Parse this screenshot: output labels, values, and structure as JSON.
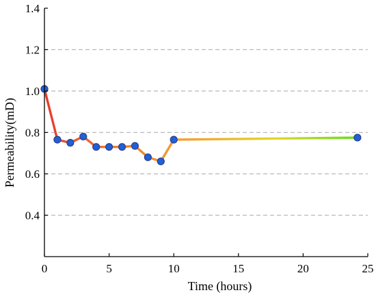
{
  "chart_data": {
    "type": "line",
    "xlabel": "Time (hours)",
    "ylabel": "Permeability(mD)",
    "xlim": [
      0,
      25
    ],
    "ylim": [
      0.2,
      1.4
    ],
    "xticks": [
      0,
      5,
      10,
      15,
      20,
      25
    ],
    "yticks": [
      0.4,
      0.6,
      0.8,
      1.0,
      1.2,
      1.4
    ],
    "ytick_labels": [
      "0.4",
      "0.6",
      "0.8",
      "1.0",
      "1.2",
      "1.4"
    ],
    "grid": "horizontal dashed",
    "series": [
      {
        "x": [
          0,
          1,
          2,
          3,
          4,
          5,
          6,
          7,
          8,
          9,
          10,
          24.2
        ],
        "y": [
          1.01,
          0.765,
          0.75,
          0.78,
          0.73,
          0.73,
          0.73,
          0.735,
          0.68,
          0.66,
          0.765,
          0.775
        ]
      }
    ],
    "colors": {
      "line_start": "#e53a2e",
      "line_mid": "#f0a030",
      "line_end": "#66dd22",
      "marker_fill": "#2060d8",
      "marker_stroke": "#2d3f8a",
      "grid": "#b8b8b8"
    }
  }
}
